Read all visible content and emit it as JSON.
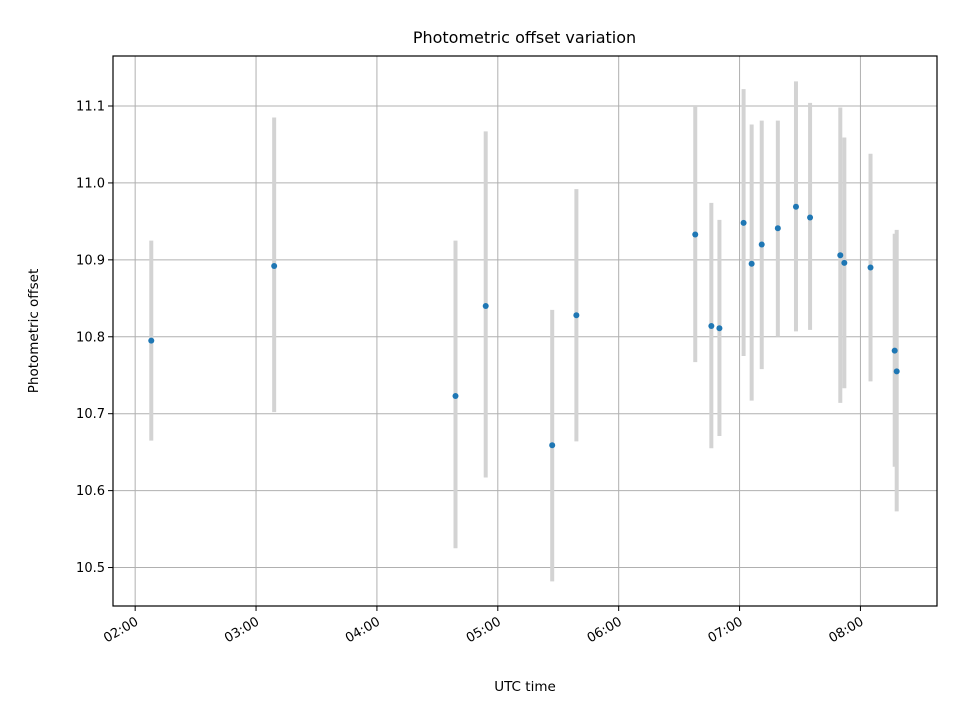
{
  "chart_data": {
    "type": "scatter",
    "title": "Photometric offset variation",
    "xlabel": "UTC time",
    "ylabel": "Photometric offset",
    "xlim": [
      "01:49",
      "08:38"
    ],
    "ylim": [
      10.45,
      11.165
    ],
    "grid": true,
    "x_ticks": [
      "02:00",
      "03:00",
      "04:00",
      "05:00",
      "06:00",
      "07:00",
      "08:00"
    ],
    "y_ticks": [
      "10.5",
      "10.6",
      "10.7",
      "10.8",
      "10.9",
      "11.0",
      "11.1"
    ],
    "points": [
      {
        "t": "02:08",
        "y": 10.795,
        "ylow": 10.665,
        "yhigh": 10.925
      },
      {
        "t": "03:09",
        "y": 10.892,
        "ylow": 10.702,
        "yhigh": 11.085
      },
      {
        "t": "04:39",
        "y": 10.723,
        "ylow": 10.525,
        "yhigh": 10.925
      },
      {
        "t": "04:54",
        "y": 10.84,
        "ylow": 10.617,
        "yhigh": 11.067
      },
      {
        "t": "05:27",
        "y": 10.659,
        "ylow": 10.482,
        "yhigh": 10.835
      },
      {
        "t": "05:39",
        "y": 10.828,
        "ylow": 10.664,
        "yhigh": 10.992
      },
      {
        "t": "06:38",
        "y": 10.933,
        "ylow": 10.767,
        "yhigh": 11.1
      },
      {
        "t": "06:46",
        "y": 10.814,
        "ylow": 10.655,
        "yhigh": 10.974
      },
      {
        "t": "06:50",
        "y": 10.811,
        "ylow": 10.671,
        "yhigh": 10.952
      },
      {
        "t": "07:02",
        "y": 10.948,
        "ylow": 10.775,
        "yhigh": 11.122
      },
      {
        "t": "07:06",
        "y": 10.895,
        "ylow": 10.717,
        "yhigh": 11.076
      },
      {
        "t": "07:11",
        "y": 10.92,
        "ylow": 10.758,
        "yhigh": 11.081
      },
      {
        "t": "07:19",
        "y": 10.941,
        "ylow": 10.8,
        "yhigh": 11.081
      },
      {
        "t": "07:28",
        "y": 10.969,
        "ylow": 10.807,
        "yhigh": 11.132
      },
      {
        "t": "07:35",
        "y": 10.955,
        "ylow": 10.809,
        "yhigh": 11.104
      },
      {
        "t": "07:50",
        "y": 10.906,
        "ylow": 10.714,
        "yhigh": 11.098
      },
      {
        "t": "07:52",
        "y": 10.896,
        "ylow": 10.733,
        "yhigh": 11.059
      },
      {
        "t": "08:05",
        "y": 10.89,
        "ylow": 10.742,
        "yhigh": 11.038
      },
      {
        "t": "08:17",
        "y": 10.782,
        "ylow": 10.631,
        "yhigh": 10.934
      },
      {
        "t": "08:18",
        "y": 10.755,
        "ylow": 10.573,
        "yhigh": 10.939
      }
    ],
    "colors": {
      "point": "#1f77b4",
      "errorbar": "#d3d3d3",
      "grid": "#b0b0b0"
    }
  }
}
